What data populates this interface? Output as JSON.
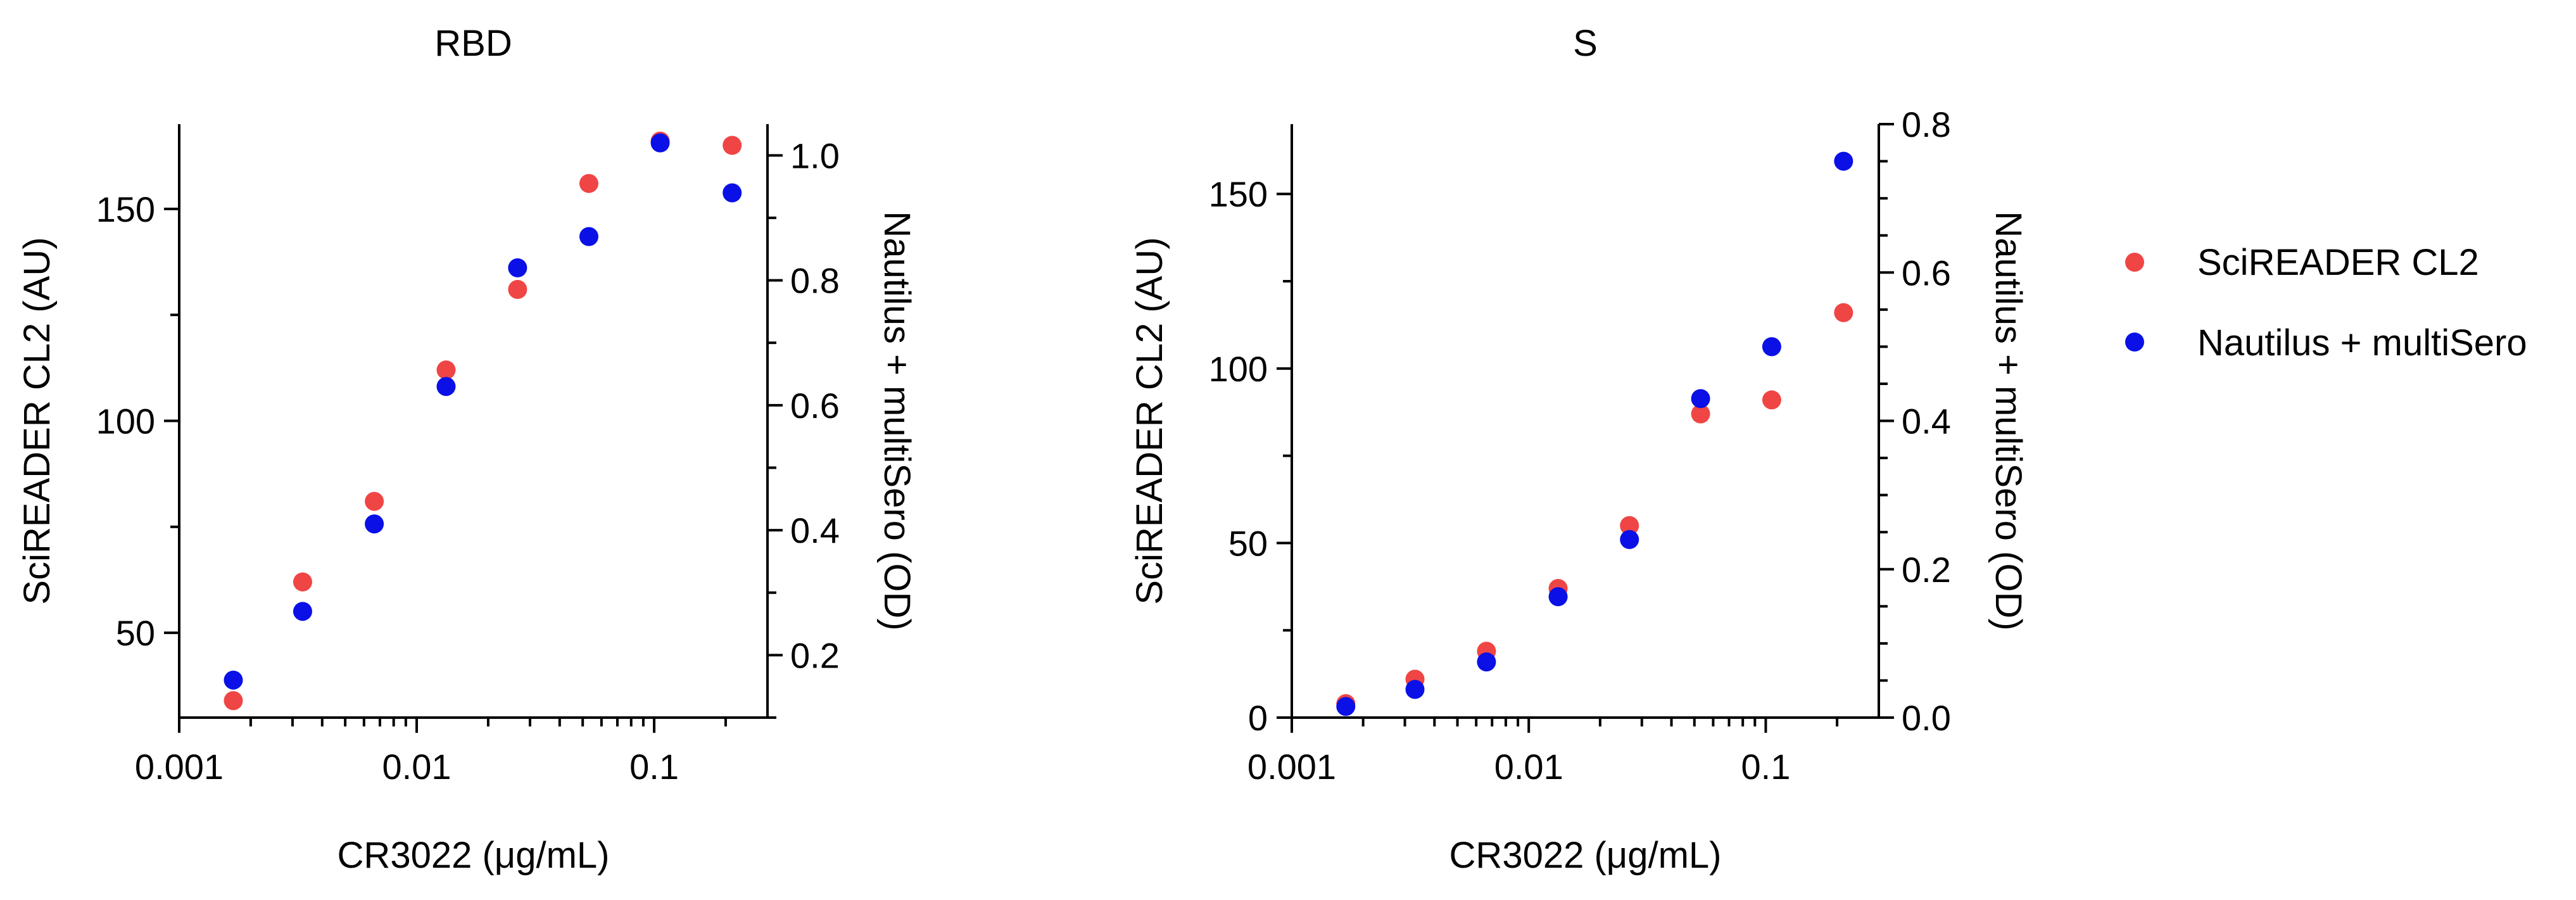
{
  "colors": {
    "scireader": "#f04545",
    "nautilus": "#0a10e6"
  },
  "legend": [
    {
      "key": "scireader",
      "label": "SciREADER CL2"
    },
    {
      "key": "nautilus",
      "label": "Nautilus + multiSero"
    }
  ],
  "chart_data": [
    {
      "type": "scatter",
      "title": "RBD",
      "xlabel": "CR3022 (μg/mL)",
      "ylabel_left": "SciREADER CL2 (AU)",
      "ylabel_right": "Nautilus + multiSero (OD)",
      "xscale": "log",
      "xlim": [
        0.001,
        0.3
      ],
      "ylim_left": [
        30,
        170
      ],
      "ylim_right": [
        0.1,
        1.05
      ],
      "xticks": [
        {
          "v": 0.001,
          "label": "0.001"
        },
        {
          "v": 0.01,
          "label": "0.01"
        },
        {
          "v": 0.1,
          "label": "0.1"
        }
      ],
      "yticks_left": [
        {
          "v": 50,
          "label": "50"
        },
        {
          "v": 100,
          "label": "100"
        },
        {
          "v": 150,
          "label": "150"
        }
      ],
      "yticks_left_minor": [
        75,
        125
      ],
      "yticks_right": [
        {
          "v": 0.2,
          "label": "0.2"
        },
        {
          "v": 0.4,
          "label": "0.4"
        },
        {
          "v": 0.6,
          "label": "0.6"
        },
        {
          "v": 0.8,
          "label": "0.8"
        },
        {
          "v": 1.0,
          "label": "1.0"
        }
      ],
      "yticks_right_minor": [
        0.1,
        0.3,
        0.5,
        0.7,
        0.9
      ],
      "series": [
        {
          "name": "SciREADER CL2",
          "key": "scireader",
          "axis": "left",
          "x": [
            0.00169,
            0.00331,
            0.00663,
            0.0133,
            0.0266,
            0.0531,
            0.106,
            0.213
          ],
          "y": [
            34,
            62,
            81,
            112,
            131,
            156,
            166,
            165
          ]
        },
        {
          "name": "Nautilus + multiSero",
          "key": "nautilus",
          "axis": "right",
          "x": [
            0.00169,
            0.00331,
            0.00663,
            0.0133,
            0.0266,
            0.0531,
            0.106,
            0.213
          ],
          "y": [
            0.16,
            0.27,
            0.41,
            0.63,
            0.82,
            0.87,
            1.02,
            0.94
          ]
        }
      ]
    },
    {
      "type": "scatter",
      "title": "S",
      "xlabel": "CR3022 (μg/mL)",
      "ylabel_left": "SciREADER CL2 (AU)",
      "ylabel_right": "Nautilus + multiSero (OD)",
      "xscale": "log",
      "xlim": [
        0.001,
        0.3
      ],
      "ylim_left": [
        0,
        170
      ],
      "ylim_right": [
        0,
        0.8
      ],
      "xticks": [
        {
          "v": 0.001,
          "label": "0.001"
        },
        {
          "v": 0.01,
          "label": "0.01"
        },
        {
          "v": 0.1,
          "label": "0.1"
        }
      ],
      "yticks_left": [
        {
          "v": 0,
          "label": "0"
        },
        {
          "v": 50,
          "label": "50"
        },
        {
          "v": 100,
          "label": "100"
        },
        {
          "v": 150,
          "label": "150"
        }
      ],
      "yticks_left_minor": [
        25,
        75,
        125
      ],
      "yticks_right": [
        {
          "v": 0,
          "label": "0.0"
        },
        {
          "v": 0.2,
          "label": "0.2"
        },
        {
          "v": 0.4,
          "label": "0.4"
        },
        {
          "v": 0.6,
          "label": "0.6"
        },
        {
          "v": 0.8,
          "label": "0.8"
        }
      ],
      "yticks_right_minor": [
        0.05,
        0.1,
        0.15,
        0.25,
        0.3,
        0.35,
        0.45,
        0.5,
        0.55,
        0.65,
        0.7,
        0.75
      ],
      "series": [
        {
          "name": "SciREADER CL2",
          "key": "scireader",
          "axis": "left",
          "x": [
            0.00169,
            0.00331,
            0.00663,
            0.0133,
            0.0266,
            0.0531,
            0.106,
            0.213
          ],
          "y": [
            4,
            11,
            19,
            37,
            55,
            87,
            91,
            116
          ]
        },
        {
          "name": "Nautilus + multiSero",
          "key": "nautilus",
          "axis": "right",
          "x": [
            0.00169,
            0.00331,
            0.00663,
            0.0133,
            0.0266,
            0.0531,
            0.106,
            0.213
          ],
          "y": [
            0.015,
            0.038,
            0.075,
            0.163,
            0.24,
            0.43,
            0.5,
            0.75
          ]
        }
      ]
    }
  ]
}
